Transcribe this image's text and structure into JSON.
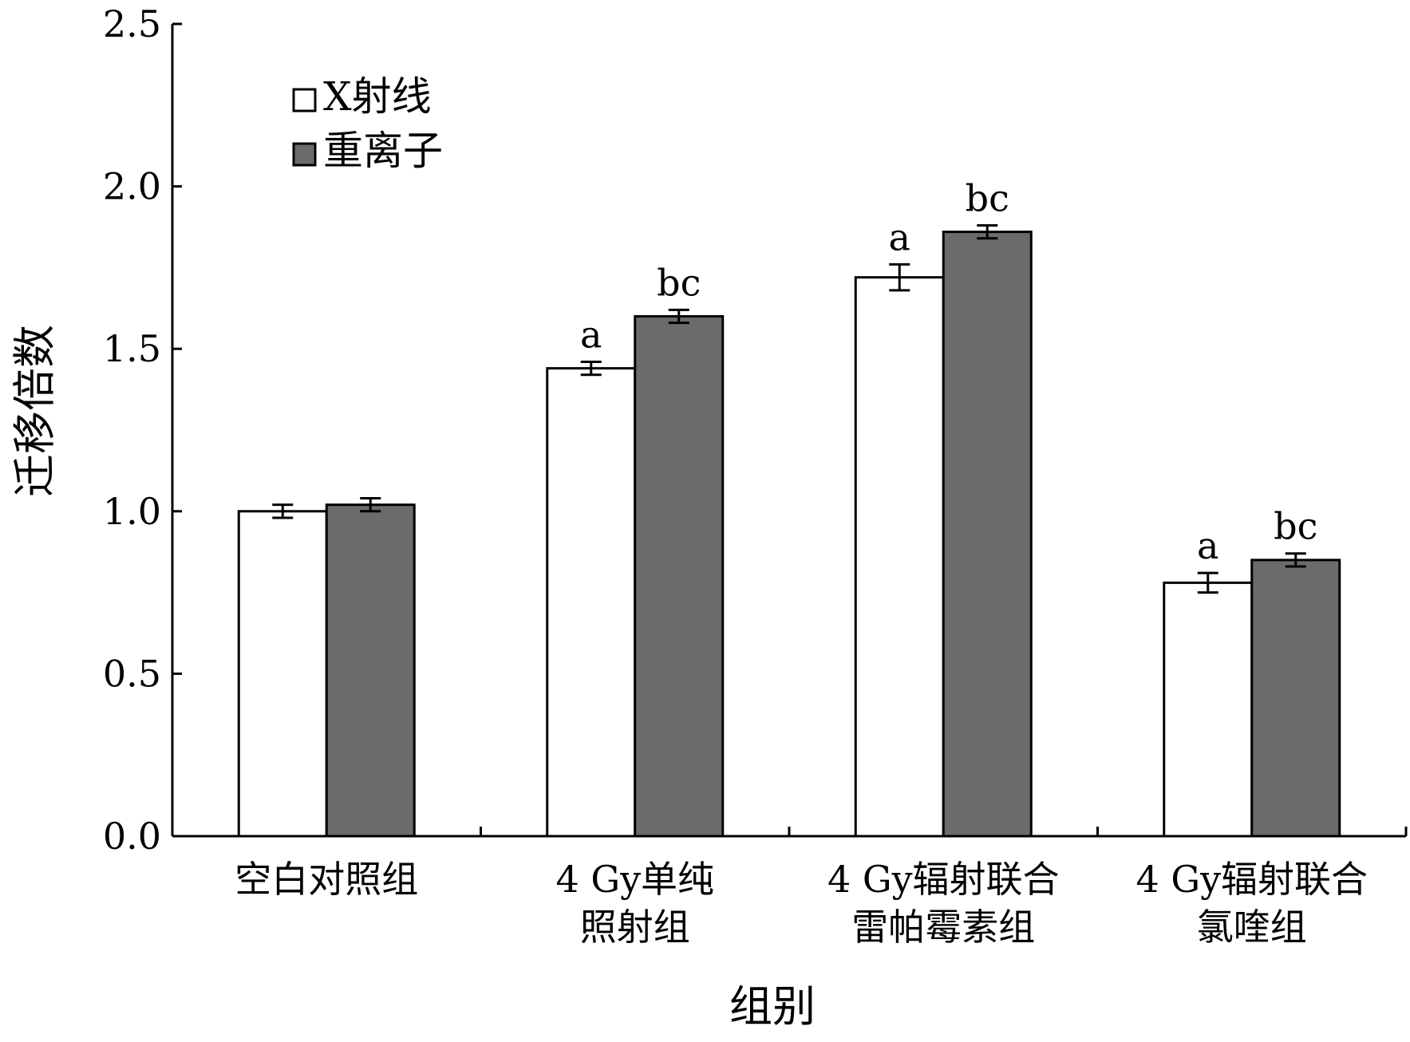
{
  "chart_data": {
    "type": "bar",
    "xlabel": "组别",
    "ylabel": "迁移倍数",
    "ylim": [
      0,
      2.5
    ],
    "yticks": [
      "0.0",
      "0.5",
      "1.0",
      "1.5",
      "2.0",
      "2.5"
    ],
    "grid": false,
    "legend_position": "top-left",
    "categories": [
      [
        "空白对照组"
      ],
      [
        "4 Gy单纯",
        "照射组"
      ],
      [
        "4 Gy辐射联合",
        "雷帕霉素组"
      ],
      [
        "4 Gy辐射联合",
        "氯喹组"
      ]
    ],
    "series": [
      {
        "name": "X射线",
        "color": "#ffffff",
        "values": [
          1.0,
          1.44,
          1.72,
          0.78
        ],
        "errors": [
          0.02,
          0.02,
          0.04,
          0.03
        ],
        "labels": [
          "",
          "a",
          "a",
          "a"
        ]
      },
      {
        "name": "重离子",
        "color": "#6b6b6b",
        "values": [
          1.02,
          1.6,
          1.86,
          0.85
        ],
        "errors": [
          0.02,
          0.02,
          0.02,
          0.02
        ],
        "labels": [
          "",
          "bc",
          "bc",
          "bc"
        ]
      }
    ]
  }
}
